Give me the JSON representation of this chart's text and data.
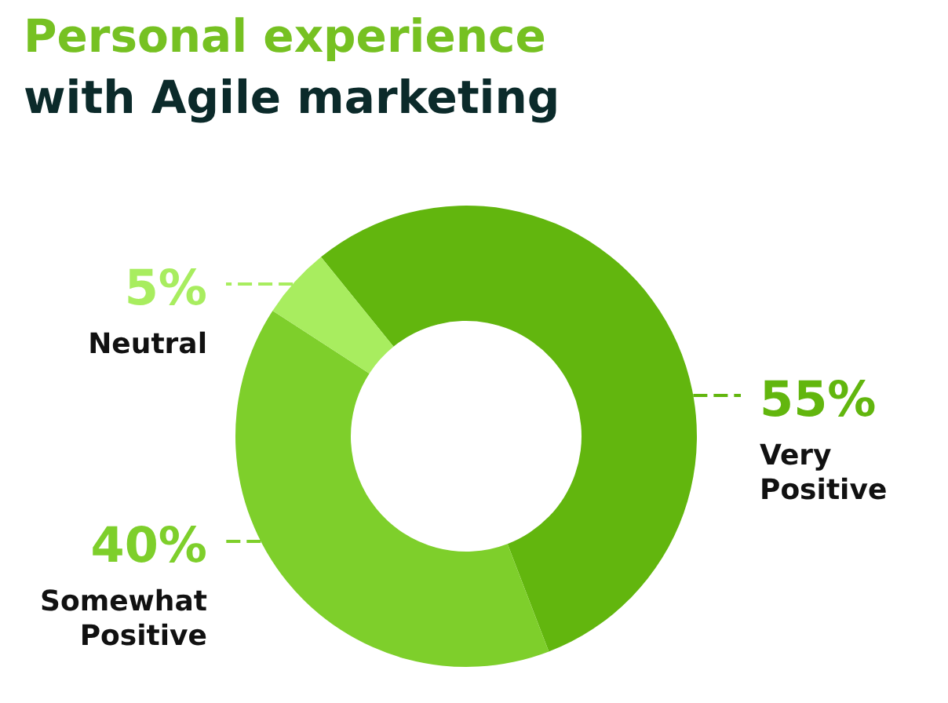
{
  "chart_data": {
    "type": "donut",
    "title": "Personal experience",
    "subtitle": "with Agile marketing",
    "categories": [
      "Very Positive",
      "Somewhat Positive",
      "Neutral"
    ],
    "values": [
      55,
      40,
      5
    ],
    "value_labels": [
      "55%",
      "40%",
      "5%"
    ],
    "colors": [
      "#62b60e",
      "#7ecf2b",
      "#a8ed5f"
    ]
  }
}
